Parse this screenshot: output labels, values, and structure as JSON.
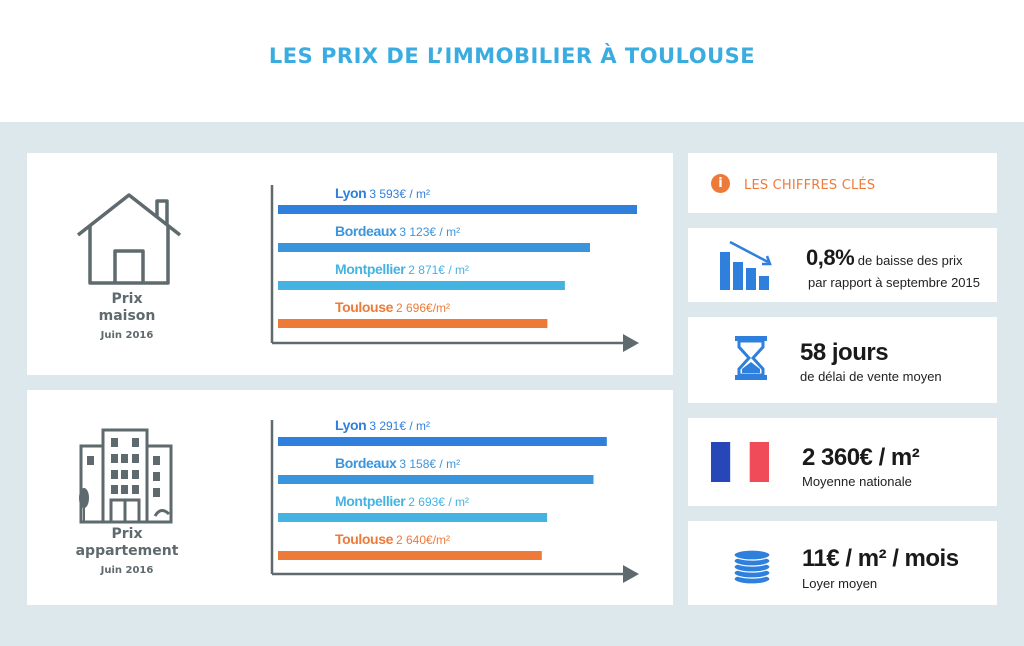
{
  "title": "LES PRIX DE L’IMMOBILIER À TOULOUSE",
  "colors": {
    "title": "#3aace0",
    "background_band": "#dde8ec",
    "blue_dark": "#2f7fdc",
    "blue_mid": "#3a95dc",
    "blue_light": "#45b3e2",
    "orange": "#ee7a3a",
    "axis": "#5e6a6e"
  },
  "house": {
    "caption_line1": "Prix",
    "caption_line2": "maison",
    "caption_line3": "Juin 2016",
    "icon": "house-icon"
  },
  "apartment": {
    "caption_line1": "Prix",
    "caption_line2": "appartement",
    "caption_line3": "Juin 2016",
    "icon": "apartment-building-icon"
  },
  "chart_data": [
    {
      "type": "bar",
      "orientation": "horizontal",
      "title": "",
      "xlabel": "",
      "ylabel": "",
      "unit": "€ / m²",
      "grid": false,
      "categories": [
        "Lyon",
        "Bordeaux",
        "Montpellier",
        "Toulouse"
      ],
      "values": [
        3593,
        3123,
        2871,
        2696
      ],
      "value_labels": [
        "3 593€ / m²",
        "3 123€ / m²",
        "2 871€ / m²",
        "2 696€/m²"
      ],
      "bar_colors": [
        "#2f7fdc",
        "#3a95dc",
        "#45b3e2",
        "#ee7a3a"
      ],
      "xlim": [
        0,
        3593
      ]
    },
    {
      "type": "bar",
      "orientation": "horizontal",
      "title": "",
      "xlabel": "",
      "ylabel": "",
      "unit": "€ / m²",
      "grid": false,
      "categories": [
        "Lyon",
        "Bordeaux",
        "Montpellier",
        "Toulouse"
      ],
      "values": [
        3291,
        3158,
        2693,
        2640
      ],
      "value_labels": [
        "3 291€ / m²",
        "3 158€ / m²",
        "2 693€ / m²",
        "2 640€/m²"
      ],
      "bar_colors": [
        "#2f7fdc",
        "#3a95dc",
        "#45b3e2",
        "#ee7a3a"
      ],
      "xlim": [
        0,
        3593
      ]
    }
  ],
  "key_figures": {
    "header": "LES CHIFFRES CLÉS",
    "header_icon": "info-icon",
    "items": [
      {
        "icon": "declining-bar-chart-icon",
        "big": "0,8%",
        "big_suffix": " de baisse des prix",
        "line2": "par rapport à septembre 2015"
      },
      {
        "icon": "hourglass-icon",
        "big": "58 jours",
        "line2": "de délai de vente moyen"
      },
      {
        "icon": "french-flag-icon",
        "big": "2 360€ / m²",
        "line2": "Moyenne nationale"
      },
      {
        "icon": "coin-stack-icon",
        "big": "11€ / m² / mois",
        "line2": "Loyer moyen"
      }
    ]
  }
}
